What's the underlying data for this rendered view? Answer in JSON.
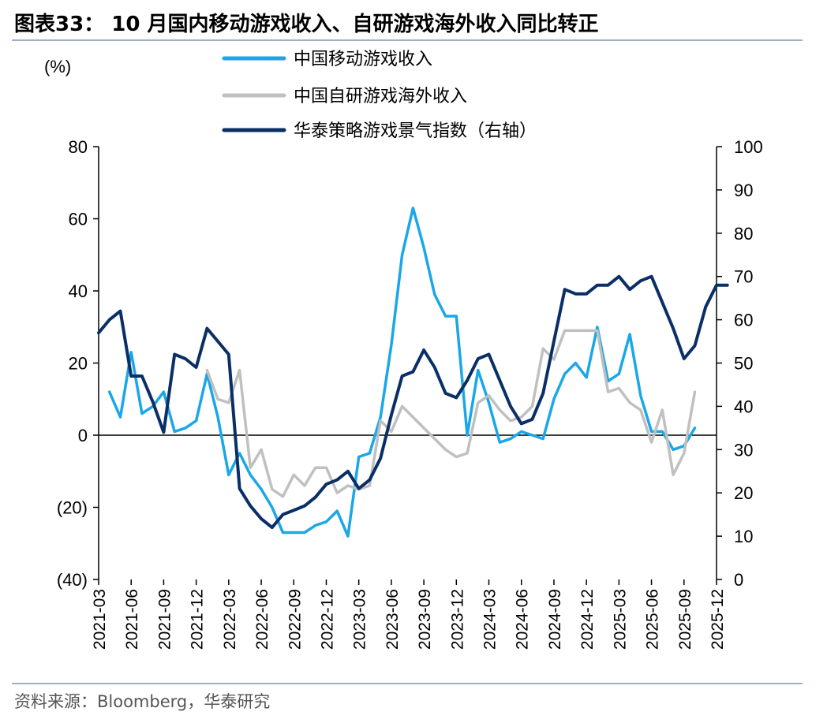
{
  "figure": {
    "title": "图表33：  10 月国内移动游戏收入、自研游戏海外收入同比转正",
    "source": "资料来源：Bloomberg，华泰研究"
  },
  "chart_data": {
    "type": "line",
    "left_axis_label": "(%)",
    "left_ylim": [
      -40,
      80
    ],
    "left_ticks": [
      80,
      60,
      40,
      20,
      0,
      -20,
      -40
    ],
    "left_tick_labels": [
      "80",
      "60",
      "40",
      "20",
      "0",
      "(20)",
      "(40)"
    ],
    "right_ylim": [
      0,
      100
    ],
    "right_ticks": [
      100,
      90,
      80,
      70,
      60,
      50,
      40,
      30,
      20,
      10,
      0
    ],
    "right_tick_labels": [
      "100",
      "90",
      "80",
      "70",
      "60",
      "50",
      "40",
      "30",
      "20",
      "10",
      "0"
    ],
    "x_tick_labels": [
      "2021-03",
      "2021-06",
      "2021-09",
      "2021-12",
      "2022-03",
      "2022-06",
      "2022-09",
      "2022-12",
      "2023-03",
      "2023-06",
      "2023-09",
      "2023-12",
      "2024-03",
      "2024-06",
      "2024-09",
      "2024-12",
      "2025-03",
      "2025-06",
      "2025-09",
      "2025-12"
    ],
    "x_start": "2021-03",
    "x_end": "2025-12",
    "legend_position": "top-center",
    "series": [
      {
        "name": "中国移动游戏收入",
        "axis": "left",
        "color": "#1aa7e8",
        "start": "2021-04",
        "values": [
          12,
          5,
          23,
          6,
          8,
          12,
          1,
          2,
          4,
          17,
          5,
          -11,
          -5,
          -11,
          -15,
          -20,
          -27,
          -27,
          -27,
          -25,
          -24,
          -21,
          -28,
          -6,
          -5,
          5,
          25,
          50,
          63,
          52,
          39,
          33,
          33,
          0,
          18,
          9,
          -2,
          -1,
          1,
          0,
          -1,
          10,
          17,
          20,
          16,
          30,
          15,
          17,
          28,
          11,
          1,
          1,
          -4,
          -3,
          2
        ]
      },
      {
        "name": "中国自研游戏海外收入",
        "axis": "left",
        "color": "#c0c0c0",
        "start": "2022-01",
        "values": [
          18,
          10,
          9,
          18,
          -9,
          -4,
          -15,
          -17,
          -11,
          -14,
          -9,
          -9,
          -16,
          -14,
          -15,
          -14,
          4,
          1,
          8,
          5,
          2,
          -1,
          -4,
          -6,
          -5,
          9,
          11,
          7,
          4,
          5,
          8,
          24,
          21,
          29,
          29,
          29,
          29,
          12,
          13,
          9,
          7,
          -2,
          7,
          -11,
          -5,
          12
        ]
      },
      {
        "name": "华泰策略游戏景气指数（右轴）",
        "axis": "right",
        "color": "#0a2f66",
        "start": "2021-03",
        "values": [
          57,
          60,
          62,
          47,
          47,
          41,
          34,
          52,
          51,
          49,
          58,
          55,
          52,
          21,
          17,
          14,
          12,
          15,
          16,
          17,
          19,
          22,
          23,
          25,
          21,
          23,
          28,
          38,
          47,
          48,
          53,
          49,
          43,
          42,
          46,
          51,
          52,
          46,
          40,
          36,
          37,
          43,
          55,
          67,
          66,
          66,
          68,
          68,
          70,
          67,
          69,
          70,
          64,
          58,
          51,
          54,
          63,
          68,
          68
        ]
      }
    ]
  }
}
